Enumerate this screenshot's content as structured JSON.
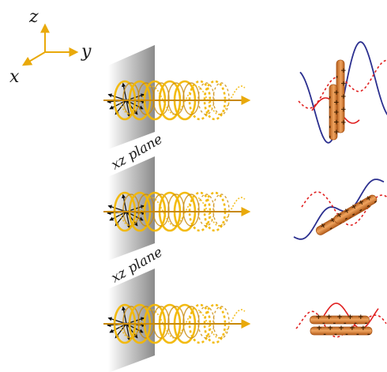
{
  "axes": {
    "z": "z",
    "y": "y",
    "x": "x"
  },
  "planes": [
    {
      "label": "xz plane"
    },
    {
      "label": "xz plane"
    }
  ],
  "rods": [
    {
      "signs": [
        "+",
        "+",
        "+",
        "+",
        "+"
      ],
      "minus": [
        "-",
        "-",
        "-",
        "-",
        "-"
      ]
    },
    {
      "signs": [
        "+",
        "+",
        "+",
        "+",
        "+"
      ],
      "minus": [
        "-",
        "-",
        "-",
        "-",
        "-"
      ]
    },
    {
      "signs": [
        "+",
        "+",
        "+",
        "+",
        "+"
      ],
      "minus": [
        "-",
        "-",
        "-",
        "-",
        "-"
      ]
    }
  ],
  "colors": {
    "beam": "#f2b705",
    "beam_dark": "#c8890a",
    "plane": "#8a8a8a",
    "blue": "#2b2f8f",
    "red": "#e02020",
    "rod": "#d8853a",
    "rod_dark": "#a85418",
    "axis": "#f2b705"
  }
}
